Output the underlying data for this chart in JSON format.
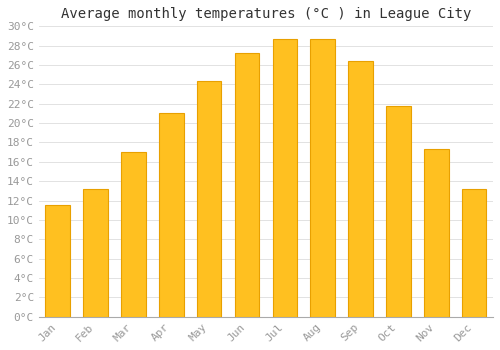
{
  "title": "Average monthly temperatures (°C ) in League City",
  "months": [
    "Jan",
    "Feb",
    "Mar",
    "Apr",
    "May",
    "Jun",
    "Jul",
    "Aug",
    "Sep",
    "Oct",
    "Nov",
    "Dec"
  ],
  "values": [
    11.5,
    13.2,
    17.0,
    21.0,
    24.3,
    27.2,
    28.7,
    28.7,
    26.4,
    21.8,
    17.3,
    13.2
  ],
  "bar_color": "#FFC020",
  "bar_edge_color": "#E8A000",
  "background_color": "#FFFFFF",
  "plot_bg_color": "#FFFFFF",
  "grid_color": "#DDDDDD",
  "ylim": [
    0,
    30
  ],
  "ytick_step": 2,
  "title_fontsize": 10,
  "tick_fontsize": 8,
  "axis_label_color": "#999999",
  "title_color": "#333333"
}
